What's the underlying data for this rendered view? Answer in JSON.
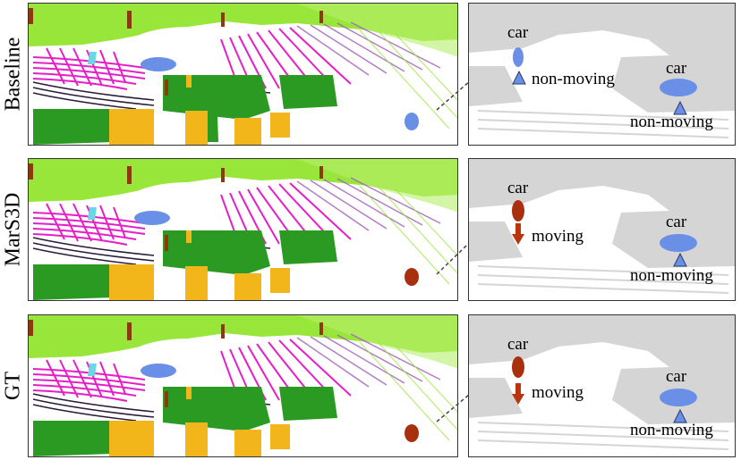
{
  "rows": [
    {
      "label": "Baseline",
      "object1": {
        "class": "car",
        "motion": "non-moving"
      },
      "object2": {
        "class": "car",
        "motion": "non-moving"
      }
    },
    {
      "label": "MarS3D",
      "object1": {
        "class": "car",
        "motion": "moving"
      },
      "object2": {
        "class": "car",
        "motion": "non-moving"
      }
    },
    {
      "label": "GT",
      "object1": {
        "class": "car",
        "motion": "moving"
      },
      "object2": {
        "class": "car",
        "motion": "non-moving"
      }
    }
  ],
  "colors": {
    "vegetation_light": "#99e63a",
    "road_magenta": "#e61ec8",
    "vegetation_green": "#2a9a22",
    "trunk_brown": "#8b3a0c",
    "terrain_yellow": "#f2b51a",
    "car_blue": "#6a8fe6",
    "moving_car_red": "#a8300e",
    "person_cyan": "#6ad6e6",
    "dark_line": "#2b1a3a",
    "gray_points": "#d5d5d5",
    "non_moving_marker": "#6a8fe6",
    "moving_marker": "#b8350e"
  }
}
